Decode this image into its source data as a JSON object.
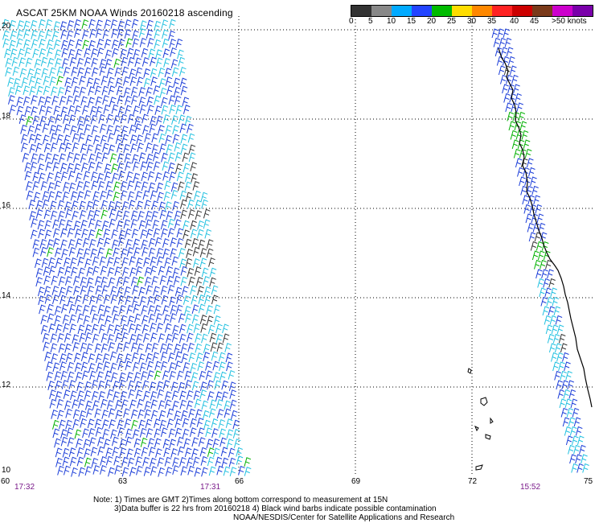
{
  "title": "ASCAT 25KM NOAA Winds 20160218 ascending",
  "legend": {
    "colors": [
      "#333333",
      "#888888",
      "#00aaff",
      "#2244ff",
      "#00bb00",
      "#ffdd00",
      "#ff8800",
      "#ff2222",
      "#cc0000",
      "#7a3a1a",
      "#cc00cc",
      "#7a00aa"
    ],
    "labels": [
      "0",
      "5",
      "10",
      "15",
      "20",
      "25",
      "30",
      "35",
      "40",
      "45",
      ">50 knots"
    ]
  },
  "axes": {
    "lon_ticks": [
      "60",
      "63",
      "66",
      "69",
      "72",
      "75"
    ],
    "lat_ticks": [
      "20",
      "18",
      "16",
      "14",
      "12",
      "10"
    ]
  },
  "times": [
    "17:32",
    "17:31",
    "15:52"
  ],
  "notes": [
    "Note: 1) Times are GMT 2)Times along bottom correspond to measurement at 15N",
    "3)Data buffer is 22 hrs from 20160218 4) Black wind barbs indicate possible contamination",
    "NOAA/NESDIS/Center for Satellite Applications and Research"
  ]
}
